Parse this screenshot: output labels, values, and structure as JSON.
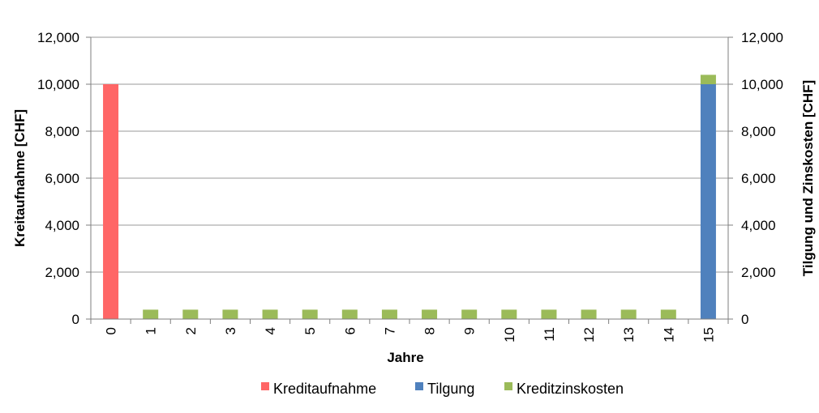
{
  "chart_data": {
    "type": "bar",
    "stacked": true,
    "title": "",
    "categories": [
      "0",
      "1",
      "2",
      "3",
      "4",
      "5",
      "6",
      "7",
      "8",
      "9",
      "10",
      "11",
      "12",
      "13",
      "14",
      "15"
    ],
    "series": [
      {
        "name": "Kreditaufnahme",
        "color": "#ff6666",
        "axis": "left",
        "values": [
          10000,
          0,
          0,
          0,
          0,
          0,
          0,
          0,
          0,
          0,
          0,
          0,
          0,
          0,
          0,
          0
        ]
      },
      {
        "name": "Tilgung",
        "color": "#4f81bd",
        "axis": "right",
        "values": [
          0,
          0,
          0,
          0,
          0,
          0,
          0,
          0,
          0,
          0,
          0,
          0,
          0,
          0,
          0,
          10000
        ]
      },
      {
        "name": "Kreditzinskosten",
        "color": "#9bbb59",
        "axis": "right",
        "values": [
          0,
          400,
          400,
          400,
          400,
          400,
          400,
          400,
          400,
          400,
          400,
          400,
          400,
          400,
          400,
          400
        ]
      }
    ],
    "xlabel": "Jahre",
    "ylabel": "Kreitaufnahme [CHF]",
    "y2label": "Tilgung und Zinskosten  [CHF]",
    "ylim": [
      0,
      12000
    ],
    "y2lim": [
      0,
      12000
    ],
    "yticks": [
      "0",
      "2,000",
      "4,000",
      "6,000",
      "8,000",
      "10,000",
      "12,000"
    ],
    "y2ticks": [
      "0",
      "2,000",
      "4,000",
      "6,000",
      "8,000",
      "10,000",
      "12,000"
    ],
    "grid": true,
    "legend_position": "bottom",
    "gridline_color": "#999999",
    "axis_color": "#7f7f7f"
  }
}
